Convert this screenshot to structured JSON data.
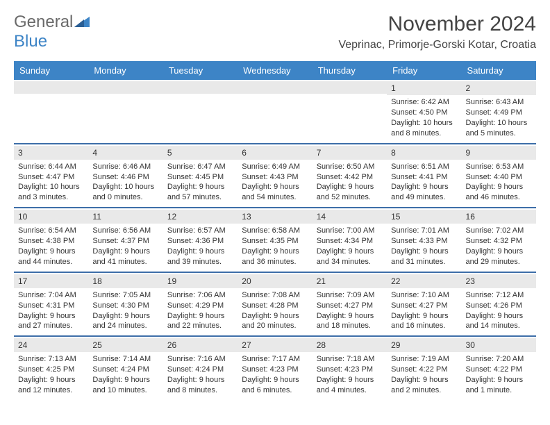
{
  "logo": {
    "part1": "General",
    "part2": "Blue"
  },
  "title": "November 2024",
  "location": "Veprinac, Primorje-Gorski Kotar, Croatia",
  "colors": {
    "header_bg": "#3d84c6",
    "week_border": "#3d6ea8",
    "daynum_bg": "#e9e9e9",
    "text": "#333333",
    "logo_gray": "#6a6a6a",
    "logo_blue": "#3d84c6"
  },
  "day_headers": [
    "Sunday",
    "Monday",
    "Tuesday",
    "Wednesday",
    "Thursday",
    "Friday",
    "Saturday"
  ],
  "weeks": [
    [
      {
        "num": "",
        "sunrise": "",
        "sunset": "",
        "daylight": ""
      },
      {
        "num": "",
        "sunrise": "",
        "sunset": "",
        "daylight": ""
      },
      {
        "num": "",
        "sunrise": "",
        "sunset": "",
        "daylight": ""
      },
      {
        "num": "",
        "sunrise": "",
        "sunset": "",
        "daylight": ""
      },
      {
        "num": "",
        "sunrise": "",
        "sunset": "",
        "daylight": ""
      },
      {
        "num": "1",
        "sunrise": "Sunrise: 6:42 AM",
        "sunset": "Sunset: 4:50 PM",
        "daylight": "Daylight: 10 hours and 8 minutes."
      },
      {
        "num": "2",
        "sunrise": "Sunrise: 6:43 AM",
        "sunset": "Sunset: 4:49 PM",
        "daylight": "Daylight: 10 hours and 5 minutes."
      }
    ],
    [
      {
        "num": "3",
        "sunrise": "Sunrise: 6:44 AM",
        "sunset": "Sunset: 4:47 PM",
        "daylight": "Daylight: 10 hours and 3 minutes."
      },
      {
        "num": "4",
        "sunrise": "Sunrise: 6:46 AM",
        "sunset": "Sunset: 4:46 PM",
        "daylight": "Daylight: 10 hours and 0 minutes."
      },
      {
        "num": "5",
        "sunrise": "Sunrise: 6:47 AM",
        "sunset": "Sunset: 4:45 PM",
        "daylight": "Daylight: 9 hours and 57 minutes."
      },
      {
        "num": "6",
        "sunrise": "Sunrise: 6:49 AM",
        "sunset": "Sunset: 4:43 PM",
        "daylight": "Daylight: 9 hours and 54 minutes."
      },
      {
        "num": "7",
        "sunrise": "Sunrise: 6:50 AM",
        "sunset": "Sunset: 4:42 PM",
        "daylight": "Daylight: 9 hours and 52 minutes."
      },
      {
        "num": "8",
        "sunrise": "Sunrise: 6:51 AM",
        "sunset": "Sunset: 4:41 PM",
        "daylight": "Daylight: 9 hours and 49 minutes."
      },
      {
        "num": "9",
        "sunrise": "Sunrise: 6:53 AM",
        "sunset": "Sunset: 4:40 PM",
        "daylight": "Daylight: 9 hours and 46 minutes."
      }
    ],
    [
      {
        "num": "10",
        "sunrise": "Sunrise: 6:54 AM",
        "sunset": "Sunset: 4:38 PM",
        "daylight": "Daylight: 9 hours and 44 minutes."
      },
      {
        "num": "11",
        "sunrise": "Sunrise: 6:56 AM",
        "sunset": "Sunset: 4:37 PM",
        "daylight": "Daylight: 9 hours and 41 minutes."
      },
      {
        "num": "12",
        "sunrise": "Sunrise: 6:57 AM",
        "sunset": "Sunset: 4:36 PM",
        "daylight": "Daylight: 9 hours and 39 minutes."
      },
      {
        "num": "13",
        "sunrise": "Sunrise: 6:58 AM",
        "sunset": "Sunset: 4:35 PM",
        "daylight": "Daylight: 9 hours and 36 minutes."
      },
      {
        "num": "14",
        "sunrise": "Sunrise: 7:00 AM",
        "sunset": "Sunset: 4:34 PM",
        "daylight": "Daylight: 9 hours and 34 minutes."
      },
      {
        "num": "15",
        "sunrise": "Sunrise: 7:01 AM",
        "sunset": "Sunset: 4:33 PM",
        "daylight": "Daylight: 9 hours and 31 minutes."
      },
      {
        "num": "16",
        "sunrise": "Sunrise: 7:02 AM",
        "sunset": "Sunset: 4:32 PM",
        "daylight": "Daylight: 9 hours and 29 minutes."
      }
    ],
    [
      {
        "num": "17",
        "sunrise": "Sunrise: 7:04 AM",
        "sunset": "Sunset: 4:31 PM",
        "daylight": "Daylight: 9 hours and 27 minutes."
      },
      {
        "num": "18",
        "sunrise": "Sunrise: 7:05 AM",
        "sunset": "Sunset: 4:30 PM",
        "daylight": "Daylight: 9 hours and 24 minutes."
      },
      {
        "num": "19",
        "sunrise": "Sunrise: 7:06 AM",
        "sunset": "Sunset: 4:29 PM",
        "daylight": "Daylight: 9 hours and 22 minutes."
      },
      {
        "num": "20",
        "sunrise": "Sunrise: 7:08 AM",
        "sunset": "Sunset: 4:28 PM",
        "daylight": "Daylight: 9 hours and 20 minutes."
      },
      {
        "num": "21",
        "sunrise": "Sunrise: 7:09 AM",
        "sunset": "Sunset: 4:27 PM",
        "daylight": "Daylight: 9 hours and 18 minutes."
      },
      {
        "num": "22",
        "sunrise": "Sunrise: 7:10 AM",
        "sunset": "Sunset: 4:27 PM",
        "daylight": "Daylight: 9 hours and 16 minutes."
      },
      {
        "num": "23",
        "sunrise": "Sunrise: 7:12 AM",
        "sunset": "Sunset: 4:26 PM",
        "daylight": "Daylight: 9 hours and 14 minutes."
      }
    ],
    [
      {
        "num": "24",
        "sunrise": "Sunrise: 7:13 AM",
        "sunset": "Sunset: 4:25 PM",
        "daylight": "Daylight: 9 hours and 12 minutes."
      },
      {
        "num": "25",
        "sunrise": "Sunrise: 7:14 AM",
        "sunset": "Sunset: 4:24 PM",
        "daylight": "Daylight: 9 hours and 10 minutes."
      },
      {
        "num": "26",
        "sunrise": "Sunrise: 7:16 AM",
        "sunset": "Sunset: 4:24 PM",
        "daylight": "Daylight: 9 hours and 8 minutes."
      },
      {
        "num": "27",
        "sunrise": "Sunrise: 7:17 AM",
        "sunset": "Sunset: 4:23 PM",
        "daylight": "Daylight: 9 hours and 6 minutes."
      },
      {
        "num": "28",
        "sunrise": "Sunrise: 7:18 AM",
        "sunset": "Sunset: 4:23 PM",
        "daylight": "Daylight: 9 hours and 4 minutes."
      },
      {
        "num": "29",
        "sunrise": "Sunrise: 7:19 AM",
        "sunset": "Sunset: 4:22 PM",
        "daylight": "Daylight: 9 hours and 2 minutes."
      },
      {
        "num": "30",
        "sunrise": "Sunrise: 7:20 AM",
        "sunset": "Sunset: 4:22 PM",
        "daylight": "Daylight: 9 hours and 1 minute."
      }
    ]
  ]
}
